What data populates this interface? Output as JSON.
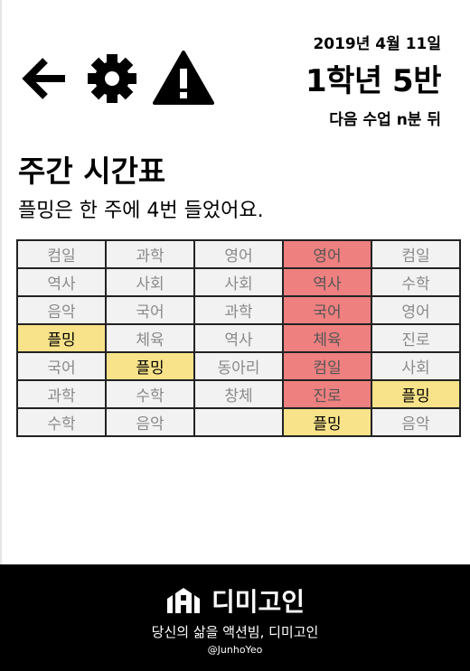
{
  "header": {
    "date": "2019년 4월 11일",
    "class_name": "1학년 5반",
    "next_class": "다음 수업 n분 뒤"
  },
  "toolbar": {
    "icons": [
      "arrow-left-icon",
      "gear-icon",
      "warning-icon"
    ]
  },
  "schedule": {
    "title": "주간 시간표",
    "summary": "플밍은 한 주에 4번 들었어요.",
    "rows": [
      [
        "컴일",
        "과학",
        "영어",
        "영어",
        "컴일"
      ],
      [
        "역사",
        "사회",
        "사회",
        "역사",
        "수학"
      ],
      [
        "음악",
        "국어",
        "과학",
        "국어",
        "영어"
      ],
      [
        "플밍",
        "체육",
        "역사",
        "체육",
        "진로"
      ],
      [
        "국어",
        "플밍",
        "동아리",
        "컴일",
        "사회"
      ],
      [
        "과학",
        "수학",
        "창체",
        "진로",
        "플밍"
      ],
      [
        "수학",
        "음악",
        "",
        "플밍",
        "음악"
      ]
    ],
    "today_column": 3,
    "highlight_subject": "플밍",
    "colors": {
      "cell": "#f2f2f2",
      "today": "#ef8080",
      "highlight": "#f8e38a",
      "muted_text": "#8a8a8a"
    }
  },
  "footer": {
    "brand": "디미고인",
    "tagline": "당신의 삶을 액션빔, 디미고인",
    "author": "@JunhoYeo"
  }
}
